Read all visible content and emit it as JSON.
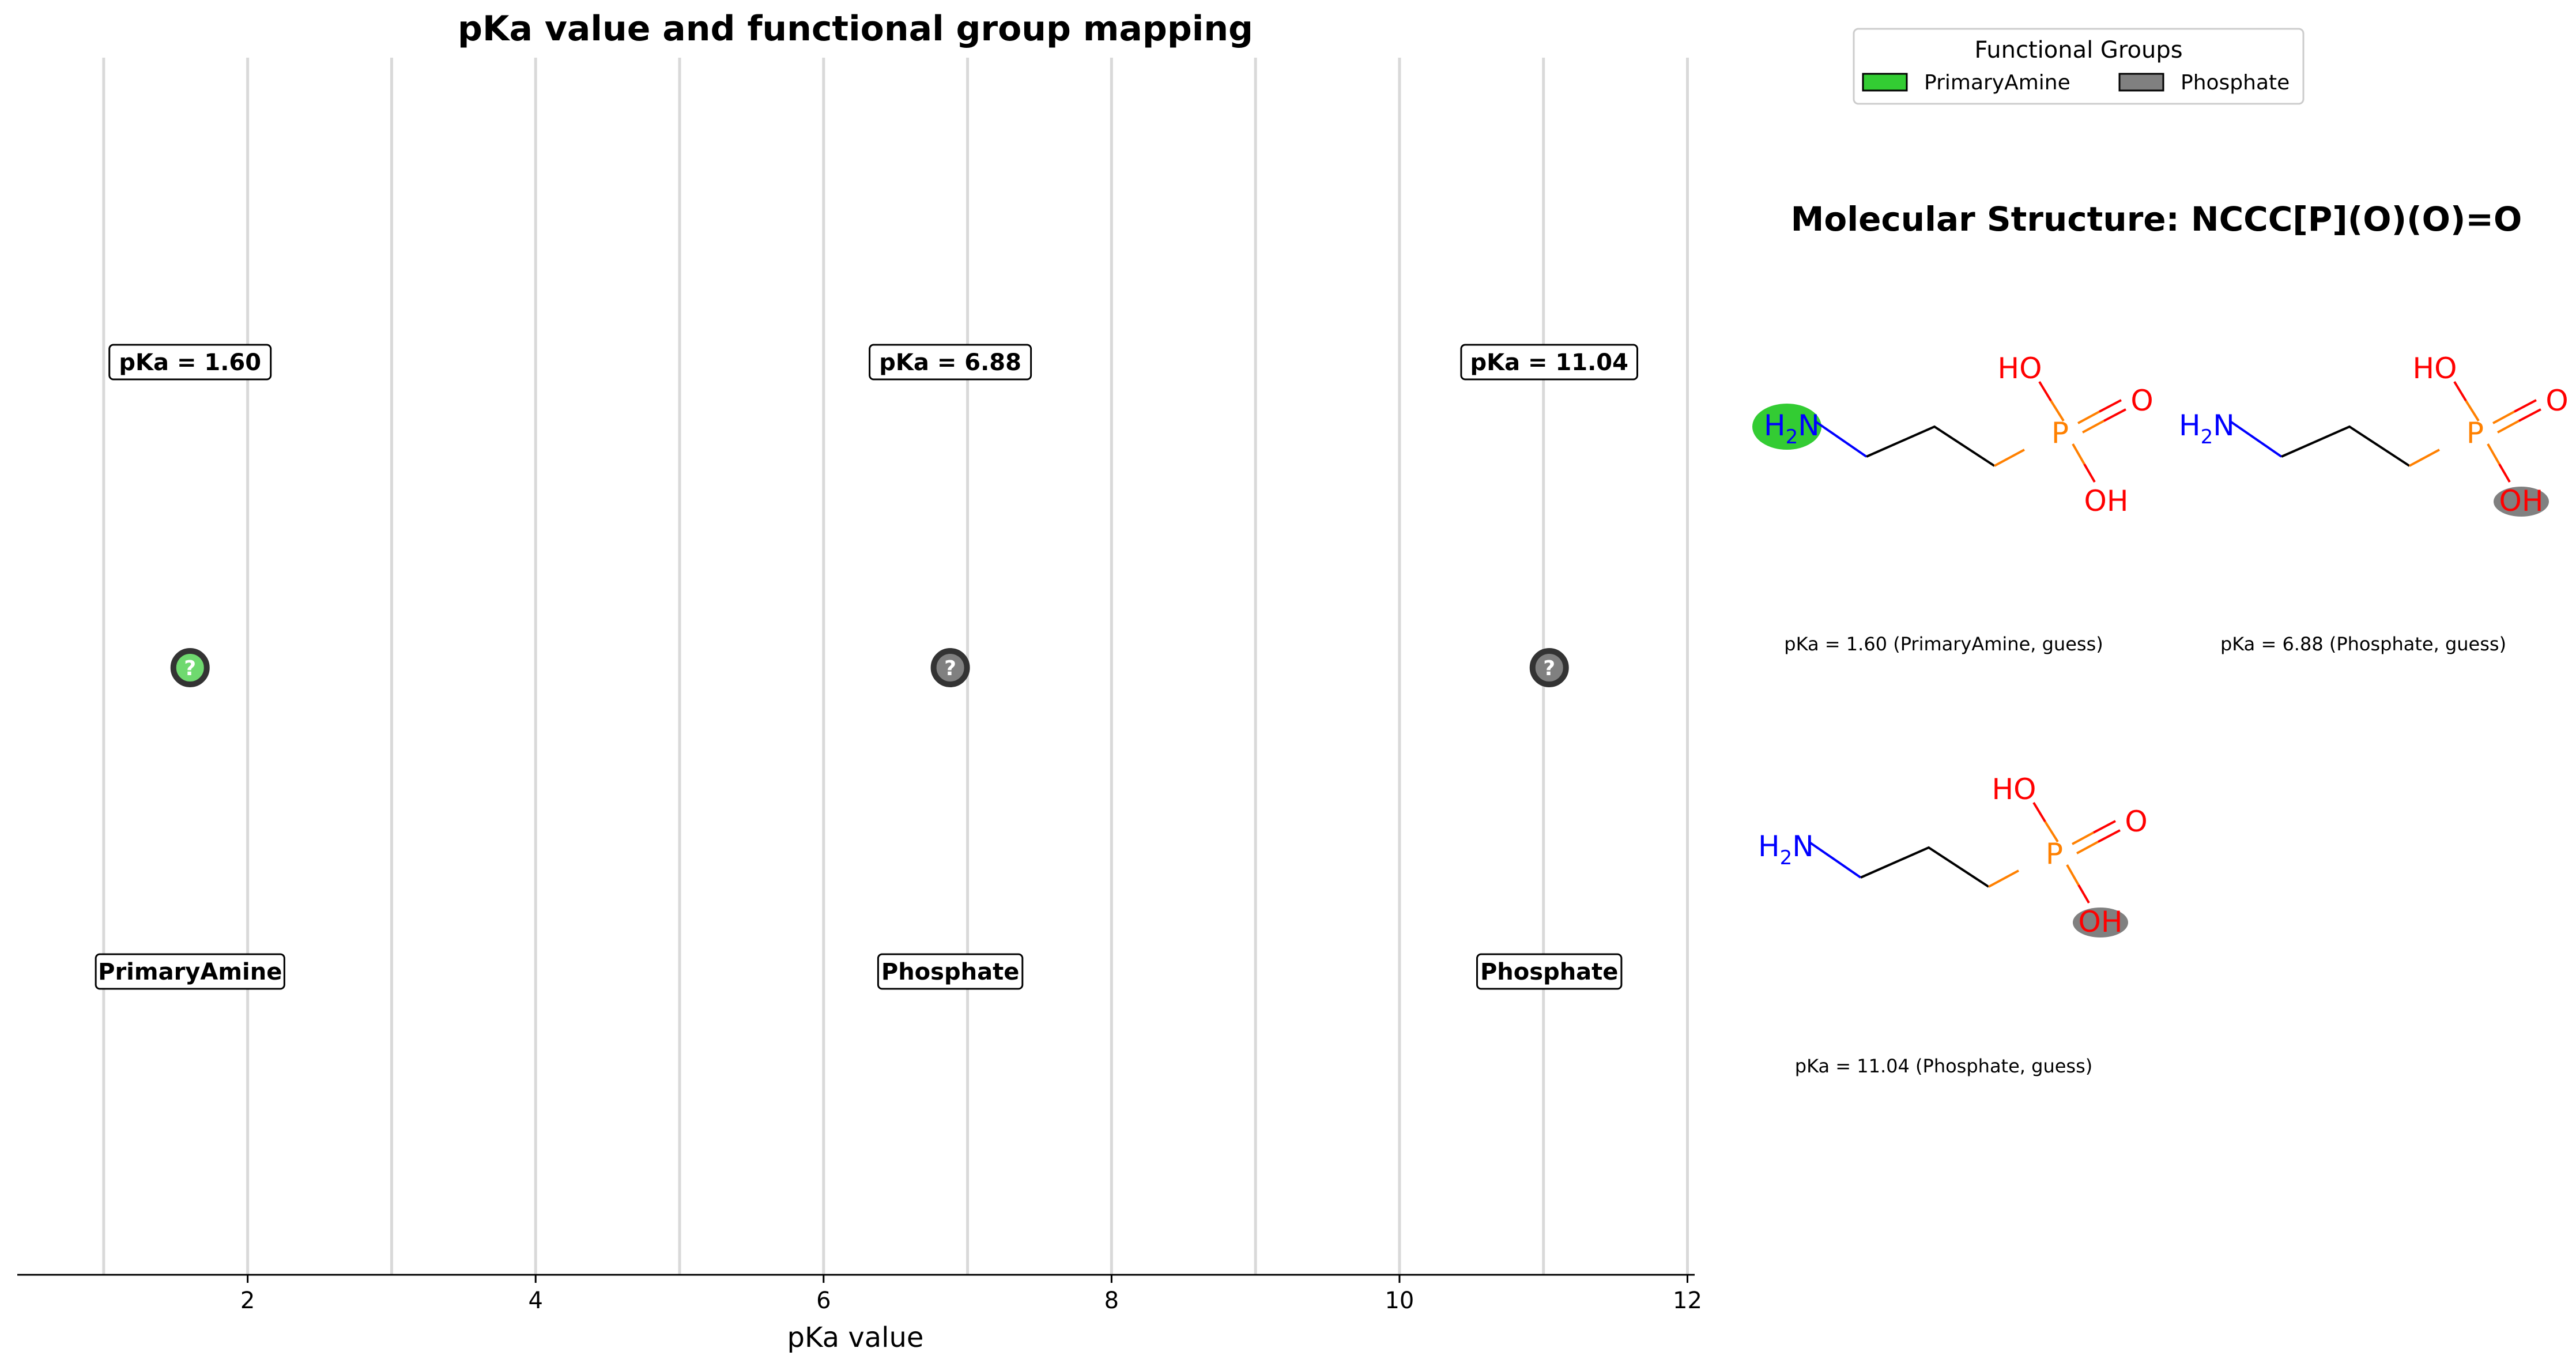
{
  "chart_data": {
    "type": "scatter",
    "title": "pKa value and functional group mapping",
    "xlabel": "pKa value",
    "ylabel": "",
    "xlim": [
      0.4,
      12.05
    ],
    "x_ticks": [
      2,
      4,
      6,
      8,
      10,
      12
    ],
    "gridlines_x": [
      1,
      2,
      3,
      4,
      5,
      6,
      7,
      8,
      9,
      10,
      11,
      12
    ],
    "grid": true,
    "points": [
      {
        "x": 1.6,
        "pka_label": "pKa = 1.60",
        "group": "PrimaryAmine",
        "marker": "?"
      },
      {
        "x": 6.88,
        "pka_label": "pKa = 6.88",
        "group": "Phosphate",
        "marker": "?"
      },
      {
        "x": 11.04,
        "pka_label": "pKa = 11.04",
        "group": "Phosphate",
        "marker": "?"
      }
    ],
    "legend": {
      "title": "Functional Groups",
      "placement": "top-right",
      "entries": [
        {
          "name": "PrimaryAmine",
          "color": "#33cc33"
        },
        {
          "name": "Phosphate",
          "color": "#808080"
        }
      ]
    }
  },
  "colors": {
    "PrimaryAmine": "#33cc33",
    "PrimaryAmine_marker": "#6fd96f",
    "Phosphate": "#808080",
    "marker_edge": "#333333",
    "gridline": "#d9d9d9",
    "nitrogen": "#0000ff",
    "oxygen": "#ff0000",
    "phosphorus": "#ff8000"
  },
  "structure_panel": {
    "title": "Molecular Structure: NCCC[P](O)(O)=O",
    "molecules": [
      {
        "caption": "pKa = 1.60 (PrimaryAmine, guess)",
        "highlight": "amine"
      },
      {
        "caption": "pKa = 6.88 (Phosphate, guess)",
        "highlight": "hydroxyl"
      },
      {
        "caption": "pKa = 11.04 (Phosphate, guess)",
        "highlight": "hydroxyl"
      }
    ],
    "atom_labels": {
      "amine_H": "H",
      "amine_sub": "2",
      "amine_N": "N",
      "phosphorus": "P",
      "hydroxyl_top": "HO",
      "carbonyl_O": "O",
      "hydroxyl_bottom": "OH"
    }
  }
}
